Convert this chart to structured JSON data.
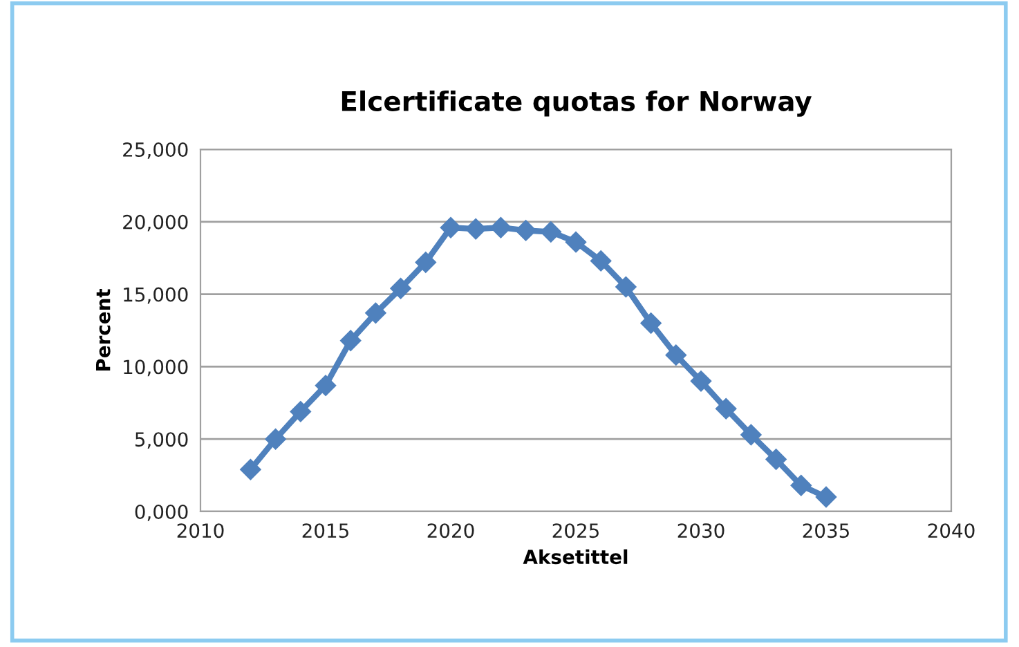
{
  "chart_data": {
    "type": "line",
    "title": "Elcertificate quotas for Norway",
    "xlabel": "Aksetittel",
    "ylabel": "Percent",
    "x": [
      2012,
      2013,
      2014,
      2015,
      2016,
      2017,
      2018,
      2019,
      2020,
      2021,
      2022,
      2023,
      2024,
      2025,
      2026,
      2027,
      2028,
      2029,
      2030,
      2031,
      2032,
      2033,
      2034,
      2035
    ],
    "series": [
      {
        "color": "#4f81bd",
        "values": [
          2900,
          5000,
          6900,
          8700,
          11800,
          13700,
          15400,
          17200,
          19600,
          19500,
          19600,
          19400,
          19300,
          18600,
          17300,
          15500,
          13000,
          10800,
          9000,
          7100,
          5300,
          3600,
          1800,
          1000
        ]
      }
    ],
    "xlim": [
      2010,
      2040
    ],
    "xticks": [
      2010,
      2015,
      2020,
      2025,
      2030,
      2035,
      2040
    ],
    "ylim": [
      0,
      25000
    ],
    "yticks": [
      {
        "value": 0,
        "label": "0,000"
      },
      {
        "value": 5000,
        "label": "5,000"
      },
      {
        "value": 10000,
        "label": "10,000"
      },
      {
        "value": 15000,
        "label": "15,000"
      },
      {
        "value": 20000,
        "label": "20,000"
      },
      {
        "value": 25000,
        "label": "25,000"
      }
    ],
    "grid": "y",
    "legend": false,
    "marker": "diamond",
    "line_style": "solid"
  }
}
